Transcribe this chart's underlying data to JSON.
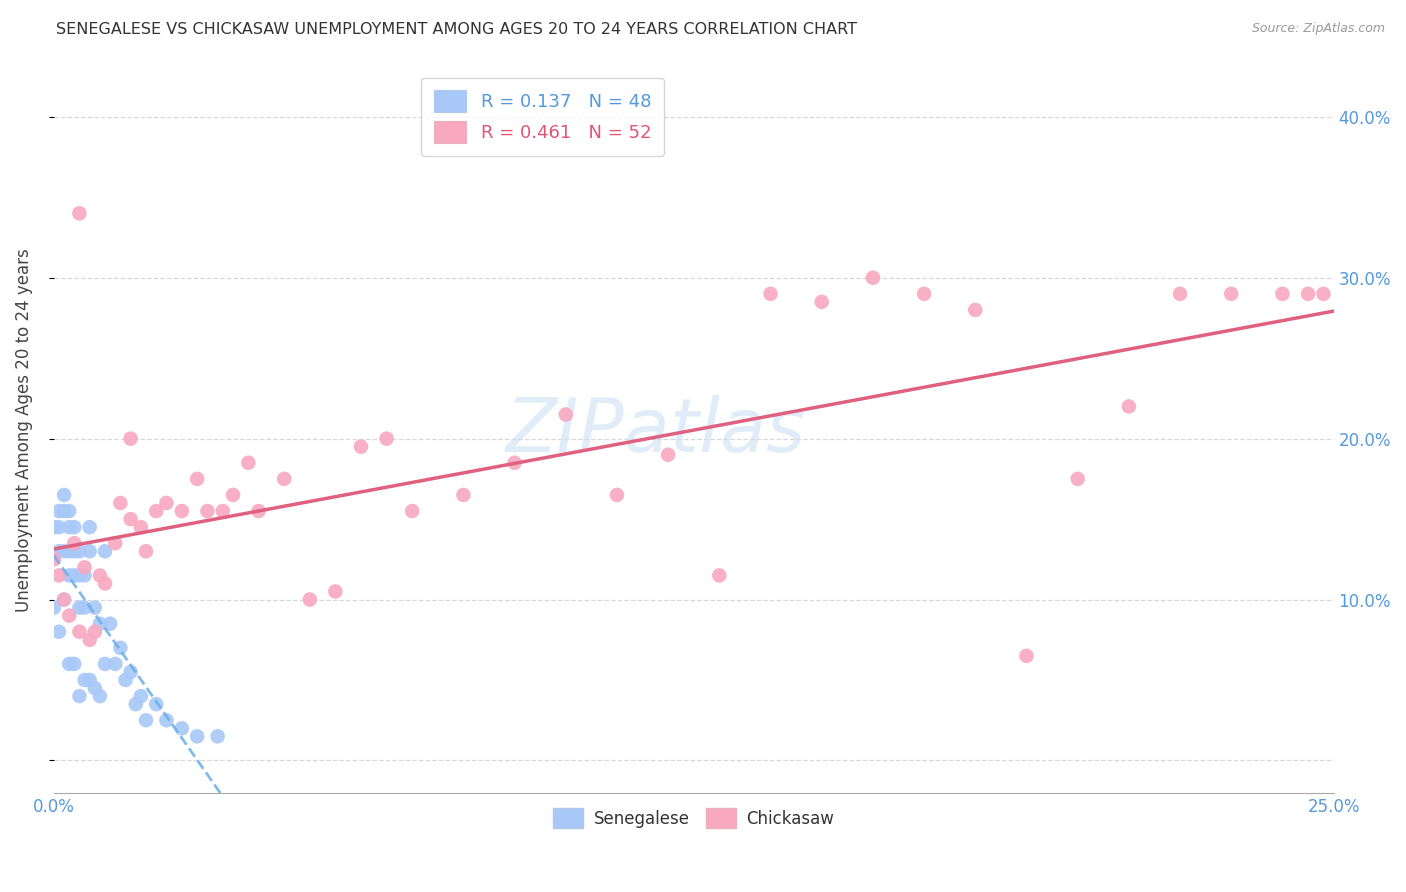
{
  "title": "SENEGALESE VS CHICKASAW UNEMPLOYMENT AMONG AGES 20 TO 24 YEARS CORRELATION CHART",
  "source": "Source: ZipAtlas.com",
  "ylabel": "Unemployment Among Ages 20 to 24 years",
  "xlim": [
    0.0,
    0.25
  ],
  "ylim": [
    -0.02,
    0.43
  ],
  "senegalese_R": 0.137,
  "senegalese_N": 48,
  "chickasaw_R": 0.461,
  "chickasaw_N": 52,
  "senegalese_color": "#a8c8f8",
  "chickasaw_color": "#f8a8c0",
  "senegalese_line_color": "#6aaee8",
  "chickasaw_line_color": "#e06080",
  "background_color": "#ffffff",
  "grid_color": "#d8d8d8",
  "watermark": "ZIPatlas",
  "senegalese_x": [
    0.0,
    0.0,
    0.001,
    0.001,
    0.001,
    0.001,
    0.002,
    0.002,
    0.002,
    0.002,
    0.003,
    0.003,
    0.003,
    0.003,
    0.003,
    0.004,
    0.004,
    0.004,
    0.004,
    0.005,
    0.005,
    0.005,
    0.005,
    0.006,
    0.006,
    0.006,
    0.007,
    0.007,
    0.007,
    0.008,
    0.008,
    0.009,
    0.009,
    0.01,
    0.01,
    0.011,
    0.012,
    0.013,
    0.014,
    0.015,
    0.016,
    0.017,
    0.018,
    0.02,
    0.022,
    0.025,
    0.028,
    0.032
  ],
  "senegalese_y": [
    0.145,
    0.095,
    0.155,
    0.145,
    0.13,
    0.08,
    0.165,
    0.155,
    0.13,
    0.1,
    0.155,
    0.145,
    0.13,
    0.115,
    0.06,
    0.145,
    0.13,
    0.115,
    0.06,
    0.13,
    0.115,
    0.095,
    0.04,
    0.115,
    0.095,
    0.05,
    0.145,
    0.13,
    0.05,
    0.095,
    0.045,
    0.085,
    0.04,
    0.13,
    0.06,
    0.085,
    0.06,
    0.07,
    0.05,
    0.055,
    0.035,
    0.04,
    0.025,
    0.035,
    0.025,
    0.02,
    0.015,
    0.015
  ],
  "chickasaw_x": [
    0.0,
    0.001,
    0.002,
    0.003,
    0.004,
    0.005,
    0.006,
    0.007,
    0.008,
    0.009,
    0.01,
    0.012,
    0.013,
    0.015,
    0.017,
    0.018,
    0.02,
    0.022,
    0.025,
    0.028,
    0.03,
    0.033,
    0.035,
    0.038,
    0.04,
    0.045,
    0.05,
    0.055,
    0.06,
    0.065,
    0.07,
    0.08,
    0.09,
    0.1,
    0.11,
    0.12,
    0.13,
    0.14,
    0.15,
    0.16,
    0.17,
    0.18,
    0.19,
    0.2,
    0.21,
    0.22,
    0.23,
    0.24,
    0.245,
    0.248,
    0.005,
    0.015
  ],
  "chickasaw_y": [
    0.125,
    0.115,
    0.1,
    0.09,
    0.135,
    0.08,
    0.12,
    0.075,
    0.08,
    0.115,
    0.11,
    0.135,
    0.16,
    0.15,
    0.145,
    0.13,
    0.155,
    0.16,
    0.155,
    0.175,
    0.155,
    0.155,
    0.165,
    0.185,
    0.155,
    0.175,
    0.1,
    0.105,
    0.195,
    0.2,
    0.155,
    0.165,
    0.185,
    0.215,
    0.165,
    0.19,
    0.115,
    0.29,
    0.285,
    0.3,
    0.29,
    0.28,
    0.065,
    0.175,
    0.22,
    0.29,
    0.29,
    0.29,
    0.29,
    0.29,
    0.34,
    0.2
  ]
}
